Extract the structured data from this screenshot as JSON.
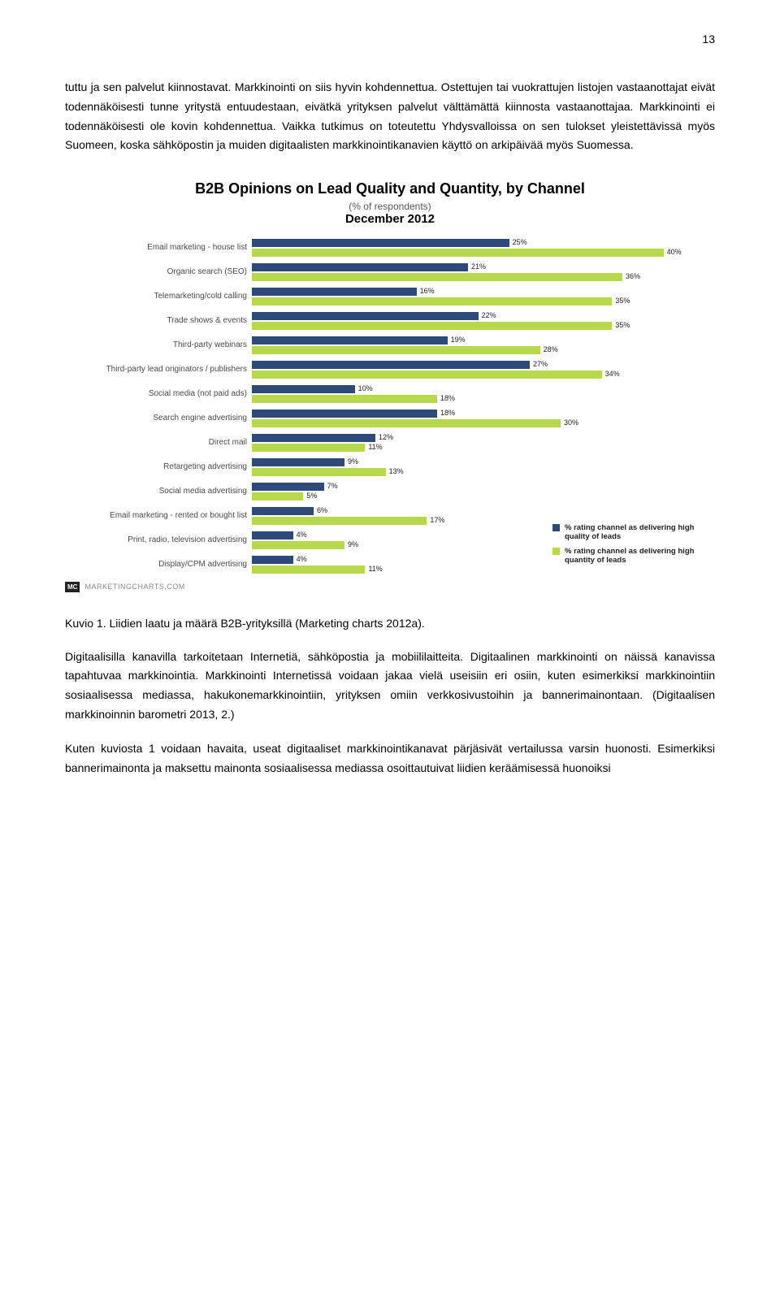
{
  "page_number": "13",
  "paragraph1": "tuttu ja sen palvelut kiinnostavat. Markkinointi on siis hyvin kohdennettua. Ostettujen tai vuokrattujen listojen vastaanottajat eivät todennäköisesti tunne yritystä entuudestaan, eivätkä yrityksen palvelut välttämättä kiinnosta vastaanottajaa. Markkinointi ei todennäköisesti ole kovin kohdennettua. Vaikka tutkimus on toteutettu Yhdysvalloissa on sen tulokset yleistettävissä myös Suomeen, koska sähköpostin ja muiden digitaalisten markkinointikanavien käyttö on arkipäivää myös Suomessa.",
  "chart": {
    "title": "B2B Opinions on Lead Quality and Quantity, by Channel",
    "subtitle": "(% of respondents)",
    "date": "December 2012",
    "type": "bar",
    "max": 45,
    "colors": {
      "quality": "#2e4a7a",
      "quantity": "#b7d84b",
      "bg": "#ffffff"
    },
    "label_fontsize": 10,
    "value_fontsize": 9,
    "rows": [
      {
        "label": "Email marketing - house list",
        "quality": 25,
        "quantity": 40
      },
      {
        "label": "Organic search (SEO)",
        "quality": 21,
        "quantity": 36
      },
      {
        "label": "Telemarketing/cold calling",
        "quality": 16,
        "quantity": 35
      },
      {
        "label": "Trade shows & events",
        "quality": 22,
        "quantity": 35
      },
      {
        "label": "Third-party webinars",
        "quality": 19,
        "quantity": 28
      },
      {
        "label": "Third-party lead originators / publishers",
        "quality": 27,
        "quantity": 34
      },
      {
        "label": "Social media (not paid ads)",
        "quality": 10,
        "quantity": 18
      },
      {
        "label": "Search engine advertising",
        "quality": 18,
        "quantity": 30
      },
      {
        "label": "Direct mail",
        "quality": 12,
        "quantity": 11
      },
      {
        "label": "Retargeting advertising",
        "quality": 9,
        "quantity": 13
      },
      {
        "label": "Social media advertising",
        "quality": 7,
        "quantity": 5
      },
      {
        "label": "Email marketing - rented or bought list",
        "quality": 6,
        "quantity": 17
      },
      {
        "label": "Print, radio, television advertising",
        "quality": 4,
        "quantity": 9
      },
      {
        "label": "Display/CPM advertising",
        "quality": 4,
        "quantity": 11
      }
    ],
    "legend": {
      "quality": "% rating channel as delivering high quality of leads",
      "quantity": "% rating channel as delivering high quantity of leads"
    },
    "footer_logo": "MC",
    "footer_text": "MARKETINGCHARTS.COM"
  },
  "caption": "Kuvio 1. Liidien laatu ja määrä B2B-yrityksillä (Marketing charts 2012a).",
  "paragraph2": "Digitaalisilla kanavilla tarkoitetaan Internetiä, sähköpostia ja mobiililaitteita. Digitaalinen markkinointi on näissä kanavissa tapahtuvaa markkinointia. Markkinointi Internetissä voidaan jakaa vielä useisiin eri osiin, kuten esimerkiksi markkinointiin sosiaalisessa mediassa, hakukonemarkkinointiin, yrityksen omiin verkkosivustoihin ja bannerimainontaan. (Digitaalisen markkinoinnin barometri 2013, 2.)",
  "paragraph3": "Kuten kuviosta 1 voidaan havaita, useat digitaaliset markkinointikanavat pärjäsivät vertailussa varsin huonosti. Esimerkiksi bannerimainonta ja maksettu mainonta sosiaalisessa mediassa osoittautuivat liidien keräämisessä huonoiksi"
}
